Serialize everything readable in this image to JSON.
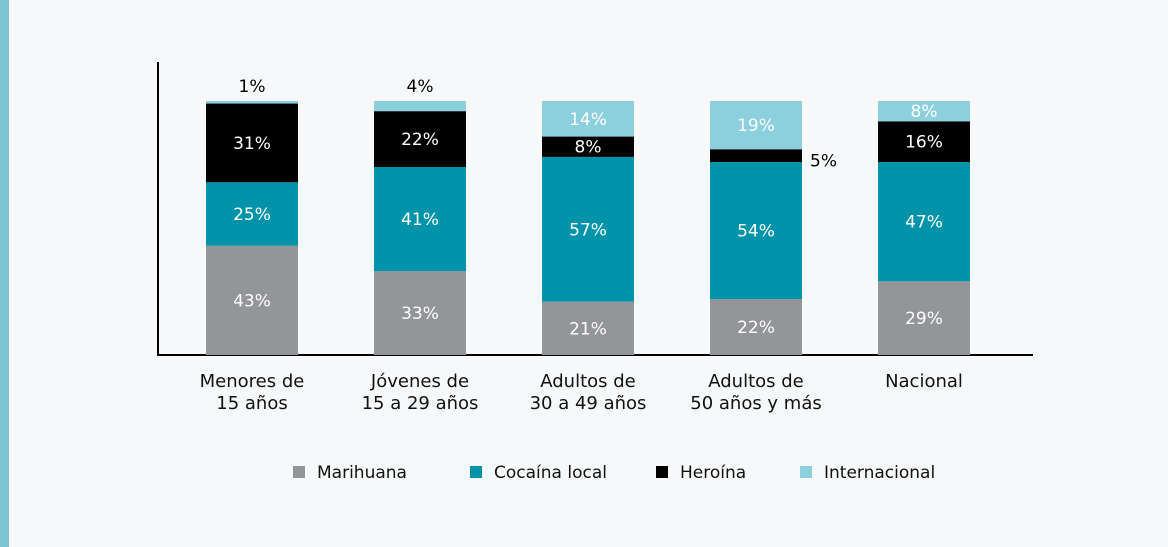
{
  "chart_data": {
    "type": "stacked_bar",
    "categories": [
      "Menores de\n15 años",
      "Jóvenes de\n15 a 29 años",
      "Adultos de\n30 a 49 años",
      "Adultos de\n50 años y más",
      "Nacional"
    ],
    "series": [
      {
        "name": "Marihuana",
        "color": "#939598",
        "values": [
          43,
          33,
          21,
          22,
          29
        ]
      },
      {
        "name": "Cocaína local",
        "color": "#0093a9",
        "values": [
          25,
          41,
          57,
          54,
          47
        ]
      },
      {
        "name": "Heroína",
        "color": "#000000",
        "values": [
          31,
          22,
          8,
          5,
          16
        ]
      },
      {
        "name": "Internacional",
        "color": "#8ccfdd",
        "values": [
          1,
          4,
          14,
          19,
          8
        ]
      }
    ],
    "value_labels": [
      [
        "43%",
        "33%",
        "21%",
        "22%",
        "29%"
      ],
      [
        "25%",
        "41%",
        "57%",
        "54%",
        "47%"
      ],
      [
        "31%",
        "22%",
        "8%",
        "5%",
        "16%"
      ],
      [
        "1%",
        "4%",
        "14%",
        "19%",
        "8%"
      ]
    ],
    "ylim": [
      0,
      100
    ],
    "legend": "bottom"
  }
}
